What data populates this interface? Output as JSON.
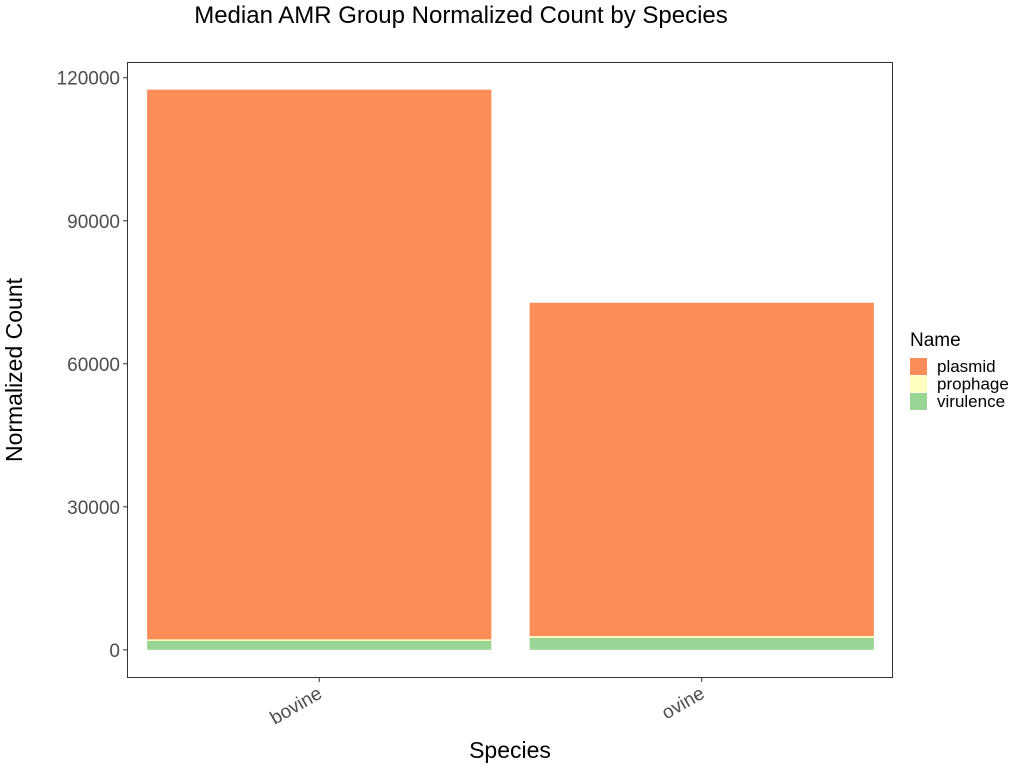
{
  "chart_data": {
    "type": "bar",
    "stacked": true,
    "title": "Median AMR Group Normalized Count by Species",
    "xlabel": "Species",
    "ylabel": "Normalized Count",
    "categories": [
      "bovine",
      "ovine"
    ],
    "series": [
      {
        "name": "virulence",
        "color": "#99d594",
        "values": [
          1900,
          2500
        ]
      },
      {
        "name": "prophage",
        "color": "#ffffbf",
        "values": [
          300,
          400
        ]
      },
      {
        "name": "plasmid",
        "color": "#fc8d59",
        "values": [
          115300,
          69900
        ]
      }
    ],
    "ylim": [
      -5700,
      123300
    ],
    "yticks": [
      0,
      30000,
      60000,
      90000,
      120000
    ],
    "ytick_labels": [
      "0",
      "30000",
      "60000",
      "90000",
      "120000"
    ],
    "grid": false,
    "legend": {
      "title": "Name",
      "position": "right",
      "entries": [
        {
          "label": "plasmid",
          "color": "#fc8d59"
        },
        {
          "label": "prophage",
          "color": "#ffffbf"
        },
        {
          "label": "virulence",
          "color": "#99d594"
        }
      ]
    }
  }
}
